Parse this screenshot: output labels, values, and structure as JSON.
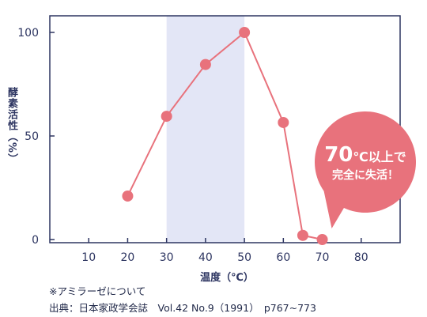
{
  "chart_data": {
    "type": "line",
    "x": [
      20,
      30,
      40,
      50,
      60,
      65,
      70
    ],
    "series": [
      {
        "values": [
          21,
          59.5,
          84.5,
          100,
          56.5,
          2,
          0
        ]
      }
    ],
    "xlim": [
      0,
      90
    ],
    "ylim": [
      0,
      100
    ],
    "xticks": [
      "10",
      "20",
      "30",
      "40",
      "50",
      "60",
      "70",
      "80"
    ],
    "yticks": [
      "0",
      "50",
      "100"
    ],
    "xlabel": "温度（℃）",
    "ylabel": "酵素活性（%）",
    "highlight_band": [
      30,
      50
    ],
    "grid": false,
    "annotation": {
      "big": "70",
      "line1_rest": "℃以上で",
      "line2": "完全に失活！"
    },
    "colors": {
      "series": "#e8727c",
      "band": "#e3e6f6",
      "axis": "#2d3561"
    }
  },
  "footnote": {
    "line1": "※アミラーゼについて",
    "line2": "出典：日本家政学会誌　Vol.42 No.9（1991）　p767~773"
  }
}
